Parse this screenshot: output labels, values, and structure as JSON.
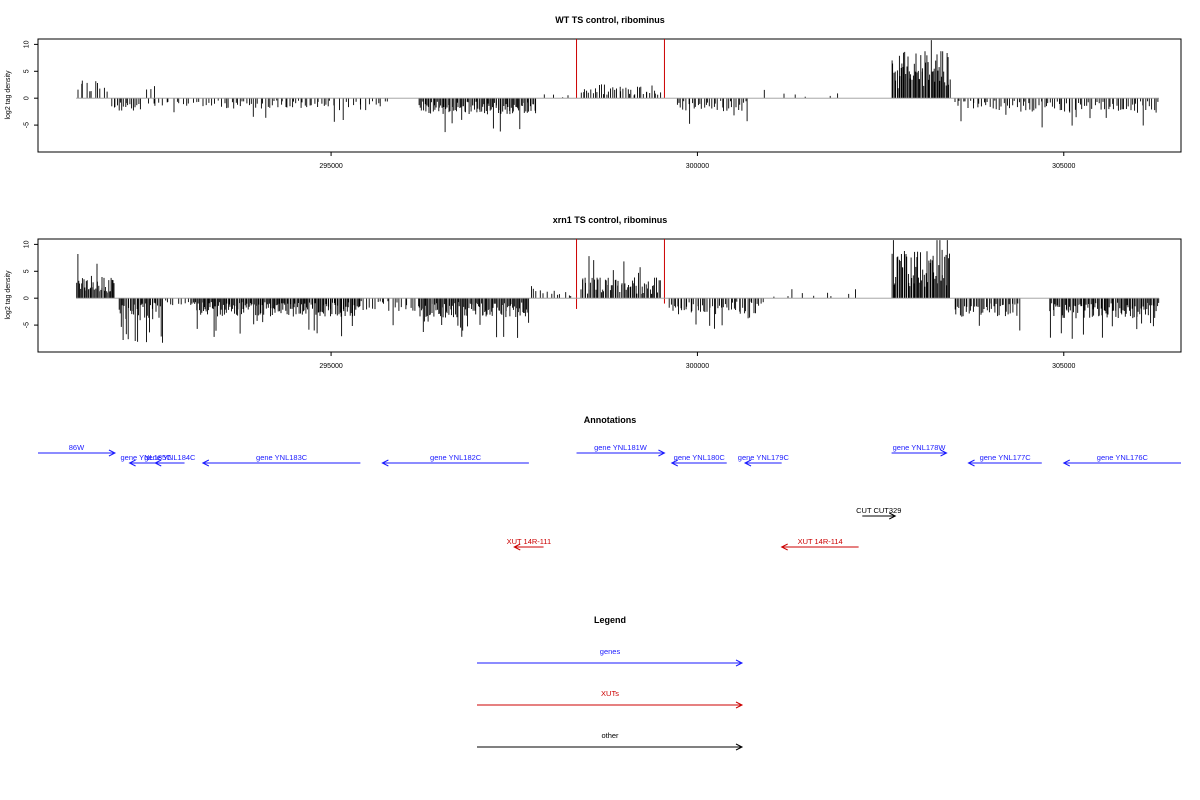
{
  "chart_data": [
    {
      "type": "bar",
      "title": "WT TS control, ribominus",
      "ylabel": "log2 tag density",
      "xlim": [
        291000,
        306600
      ],
      "ylim": [
        -10,
        11
      ],
      "xticks": [
        295000,
        300000,
        305000
      ],
      "yticks": [
        -5,
        0,
        5,
        10
      ],
      "bar_color": "#000000",
      "marker_color": "#cc0000",
      "markers": [
        {
          "x": 298350,
          "top": 11,
          "bottom": 0
        },
        {
          "x": 299550,
          "top": 11,
          "bottom": 0
        }
      ],
      "segments": [
        {
          "from": 291520,
          "to": 291950,
          "dir": 1,
          "level": 2.4,
          "density": 0.35
        },
        {
          "from": 292000,
          "to": 292400,
          "dir": -1,
          "level": 2.0,
          "density": 0.6
        },
        {
          "from": 292450,
          "to": 292600,
          "dir": 1,
          "level": 1.5,
          "density": 0.3
        },
        {
          "from": 292500,
          "to": 293500,
          "dir": -1,
          "level": 1.0,
          "density": 0.3
        },
        {
          "from": 293500,
          "to": 295000,
          "dir": -1,
          "level": 1.3,
          "density": 0.45
        },
        {
          "from": 295000,
          "to": 295800,
          "dir": -1,
          "level": 1.5,
          "density": 0.3
        },
        {
          "from": 296200,
          "to": 297800,
          "dir": -1,
          "level": 2.0,
          "density": 0.9
        },
        {
          "from": 297800,
          "to": 298300,
          "dir": 1,
          "level": 0.6,
          "density": 0.1
        },
        {
          "from": 298400,
          "to": 299500,
          "dir": 1,
          "level": 1.8,
          "density": 0.5
        },
        {
          "from": 299700,
          "to": 300700,
          "dir": -1,
          "level": 1.6,
          "density": 0.5
        },
        {
          "from": 300900,
          "to": 302000,
          "dir": 1,
          "level": 0.8,
          "density": 0.08
        },
        {
          "from": 302650,
          "to": 303450,
          "dir": 1,
          "level": 6.0,
          "density": 1.0
        },
        {
          "from": 303500,
          "to": 304400,
          "dir": -1,
          "level": 1.5,
          "density": 0.45
        },
        {
          "from": 304400,
          "to": 306300,
          "dir": -1,
          "level": 1.8,
          "density": 0.5
        }
      ]
    },
    {
      "type": "bar",
      "title": "xrn1 TS control, ribominus",
      "ylabel": "log2 tag density",
      "xlim": [
        291000,
        306600
      ],
      "ylim": [
        -10,
        11
      ],
      "xticks": [
        295000,
        300000,
        305000
      ],
      "yticks": [
        -5,
        0,
        5,
        10
      ],
      "bar_color": "#000000",
      "marker_color": "#cc0000",
      "markers": [
        {
          "x": 298350,
          "top": 11,
          "bottom": -2
        },
        {
          "x": 299550,
          "top": 11,
          "bottom": -1
        }
      ],
      "segments": [
        {
          "from": 291520,
          "to": 292050,
          "dir": 1,
          "level": 2.8,
          "density": 1.0
        },
        {
          "from": 292100,
          "to": 292700,
          "dir": -1,
          "level": 2.8,
          "density": 0.9
        },
        {
          "from": 292700,
          "to": 293100,
          "dir": -1,
          "level": 1.0,
          "density": 0.3
        },
        {
          "from": 293100,
          "to": 295400,
          "dir": -1,
          "level": 2.3,
          "density": 1.0
        },
        {
          "from": 295400,
          "to": 296200,
          "dir": -1,
          "level": 1.6,
          "density": 0.4
        },
        {
          "from": 296200,
          "to": 297700,
          "dir": -1,
          "level": 2.4,
          "density": 1.0
        },
        {
          "from": 297700,
          "to": 298300,
          "dir": 1,
          "level": 1.2,
          "density": 0.3
        },
        {
          "from": 298400,
          "to": 299500,
          "dir": 1,
          "level": 2.6,
          "density": 0.8
        },
        {
          "from": 299600,
          "to": 300900,
          "dir": -1,
          "level": 2.0,
          "density": 0.6
        },
        {
          "from": 301000,
          "to": 302200,
          "dir": 1,
          "level": 0.8,
          "density": 0.1
        },
        {
          "from": 302650,
          "to": 303450,
          "dir": 1,
          "level": 6.0,
          "density": 1.0
        },
        {
          "from": 303500,
          "to": 304400,
          "dir": -1,
          "level": 2.3,
          "density": 0.7
        },
        {
          "from": 304800,
          "to": 306300,
          "dir": -1,
          "level": 2.5,
          "density": 0.9
        }
      ]
    }
  ],
  "annotations": {
    "title": "Annotations",
    "features": [
      {
        "label": "86W",
        "type": "gene",
        "start": 291000,
        "end": 292050,
        "row": 0
      },
      {
        "label": "gene YNL185C",
        "type": "gene",
        "start": 292700,
        "end": 292250,
        "row": 1
      },
      {
        "label": "gene YNL184C",
        "type": "gene",
        "start": 293000,
        "end": 292600,
        "row": 1
      },
      {
        "label": "gene YNL183C",
        "type": "gene",
        "start": 295400,
        "end": 293250,
        "row": 1
      },
      {
        "label": "gene YNL182C",
        "type": "gene",
        "start": 297700,
        "end": 295700,
        "row": 1
      },
      {
        "label": "gene YNL181W",
        "type": "gene",
        "start": 298350,
        "end": 299550,
        "row": 0
      },
      {
        "label": "gene YNL180C",
        "type": "gene",
        "start": 300400,
        "end": 299650,
        "row": 1
      },
      {
        "label": "gene YNL179C",
        "type": "gene",
        "start": 301150,
        "end": 300650,
        "row": 1
      },
      {
        "label": "gene YNL178W",
        "type": "gene",
        "start": 302650,
        "end": 303400,
        "row": 0
      },
      {
        "label": "gene YNL177C",
        "type": "gene",
        "start": 304700,
        "end": 303700,
        "row": 1
      },
      {
        "label": "gene YNL176C",
        "type": "gene",
        "start": 306600,
        "end": 305000,
        "row": 1
      },
      {
        "label": "CUT CUT329",
        "type": "other",
        "start": 302250,
        "end": 302700,
        "row": 2
      },
      {
        "label": "XUT 14R-111",
        "type": "xut",
        "start": 297900,
        "end": 297500,
        "row": 3
      },
      {
        "label": "XUT 14R-114",
        "type": "xut",
        "start": 302200,
        "end": 301150,
        "row": 3
      }
    ]
  },
  "legend": {
    "title": "Legend",
    "items": [
      {
        "label": "genes",
        "color": "#1a1aff"
      },
      {
        "label": "XUTs",
        "color": "#cc0000"
      },
      {
        "label": "other",
        "color": "#000000"
      }
    ]
  },
  "colors": {
    "gene": "#1a1aff",
    "xut": "#cc0000",
    "other": "#000000",
    "axis": "#000000",
    "zero_line": "#999999"
  }
}
